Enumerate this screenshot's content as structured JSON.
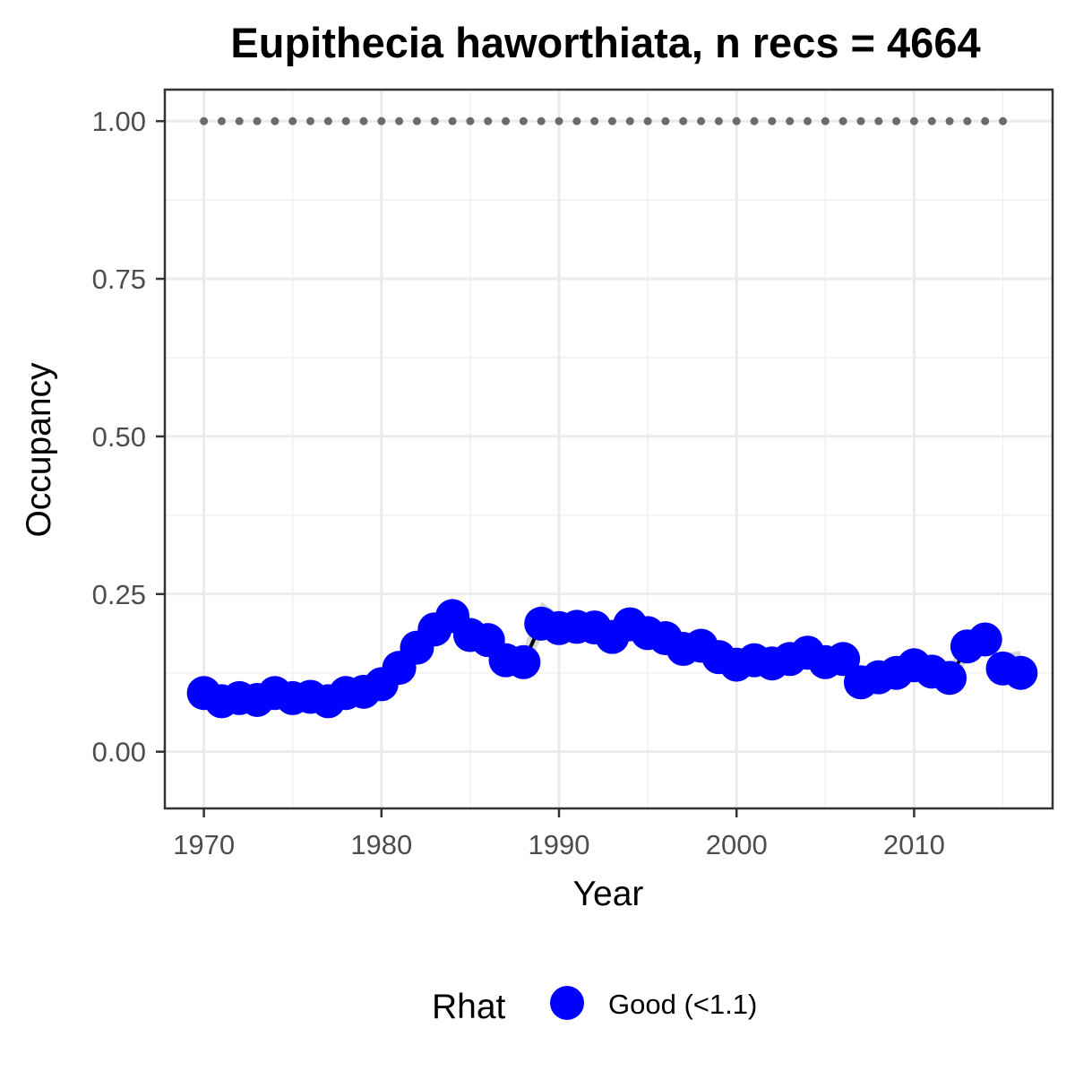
{
  "chart_data": {
    "type": "line",
    "title": "Eupithecia haworthiata, n recs = 4664",
    "xlabel": "Year",
    "ylabel": "Occupancy",
    "xlim": [
      1967.8,
      2017.8
    ],
    "ylim": [
      -0.09,
      1.05
    ],
    "x_ticks": [
      1970,
      1980,
      1990,
      2000,
      2010
    ],
    "x_tick_labels": [
      "1970",
      "1980",
      "1990",
      "2000",
      "2010"
    ],
    "y_ticks": [
      0,
      0.25,
      0.5,
      0.75,
      1
    ],
    "y_tick_labels": [
      "0.00",
      "0.25",
      "0.50",
      "0.75",
      "1.00"
    ],
    "grid": true,
    "legend": {
      "title": "Rhat",
      "placement": "bottom",
      "entries": [
        {
          "label": "Good (<1.1)",
          "color": "#0000ff"
        }
      ]
    },
    "colors": {
      "points": "#0000ff",
      "line": "#000000",
      "ribbon": "#d3d3d3",
      "reference_points": "#6b6b6b"
    },
    "reference_series": {
      "x": [
        1970,
        1971,
        1972,
        1973,
        1974,
        1975,
        1976,
        1977,
        1978,
        1979,
        1980,
        1981,
        1982,
        1983,
        1984,
        1985,
        1986,
        1987,
        1988,
        1989,
        1990,
        1991,
        1992,
        1993,
        1994,
        1995,
        1996,
        1997,
        1998,
        1999,
        2000,
        2001,
        2002,
        2003,
        2004,
        2005,
        2006,
        2007,
        2008,
        2009,
        2010,
        2011,
        2012,
        2013,
        2014,
        2015
      ],
      "y": [
        1,
        1,
        1,
        1,
        1,
        1,
        1,
        1,
        1,
        1,
        1,
        1,
        1,
        1,
        1,
        1,
        1,
        1,
        1,
        1,
        1,
        1,
        1,
        1,
        1,
        1,
        1,
        1,
        1,
        1,
        1,
        1,
        1,
        1,
        1,
        1,
        1,
        1,
        1,
        1,
        1,
        1,
        1,
        1,
        1,
        1
      ]
    },
    "series": [
      {
        "name": "Good (<1.1)",
        "x": [
          1970,
          1971,
          1972,
          1973,
          1974,
          1975,
          1976,
          1977,
          1978,
          1979,
          1980,
          1981,
          1982,
          1983,
          1984,
          1985,
          1986,
          1987,
          1988,
          1989,
          1990,
          1991,
          1992,
          1993,
          1994,
          1995,
          1996,
          1997,
          1998,
          1999,
          2000,
          2001,
          2002,
          2003,
          2004,
          2005,
          2006,
          2007,
          2008,
          2009,
          2010,
          2011,
          2012,
          2013,
          2014,
          2015,
          2016
        ],
        "y": [
          0.093,
          0.08,
          0.085,
          0.082,
          0.093,
          0.085,
          0.087,
          0.08,
          0.093,
          0.095,
          0.107,
          0.133,
          0.165,
          0.194,
          0.215,
          0.185,
          0.177,
          0.145,
          0.142,
          0.203,
          0.196,
          0.198,
          0.197,
          0.182,
          0.202,
          0.188,
          0.18,
          0.163,
          0.168,
          0.15,
          0.138,
          0.145,
          0.14,
          0.147,
          0.157,
          0.142,
          0.147,
          0.11,
          0.118,
          0.125,
          0.137,
          0.127,
          0.117,
          0.167,
          0.178,
          0.132,
          0.125
        ],
        "lower": [
          0.073,
          0.063,
          0.068,
          0.066,
          0.075,
          0.068,
          0.07,
          0.063,
          0.075,
          0.077,
          0.088,
          0.112,
          0.143,
          0.17,
          0.19,
          0.163,
          0.155,
          0.125,
          0.122,
          0.18,
          0.175,
          0.177,
          0.176,
          0.162,
          0.18,
          0.167,
          0.16,
          0.144,
          0.149,
          0.132,
          0.121,
          0.127,
          0.123,
          0.129,
          0.139,
          0.125,
          0.129,
          0.094,
          0.101,
          0.107,
          0.119,
          0.109,
          0.1,
          0.145,
          0.155,
          0.11,
          0.1
        ],
        "upper": [
          0.115,
          0.099,
          0.104,
          0.1,
          0.113,
          0.104,
          0.106,
          0.099,
          0.113,
          0.115,
          0.128,
          0.156,
          0.189,
          0.22,
          0.244,
          0.209,
          0.201,
          0.167,
          0.164,
          0.238,
          0.218,
          0.22,
          0.219,
          0.204,
          0.225,
          0.21,
          0.202,
          0.184,
          0.189,
          0.17,
          0.157,
          0.165,
          0.159,
          0.167,
          0.177,
          0.161,
          0.167,
          0.128,
          0.137,
          0.145,
          0.157,
          0.147,
          0.136,
          0.191,
          0.203,
          0.155,
          0.16
        ],
        "segments": [
          [
            0,
            18
          ],
          [
            18,
            19
          ],
          [
            19,
            44
          ],
          [
            45,
            46
          ]
        ]
      }
    ]
  }
}
